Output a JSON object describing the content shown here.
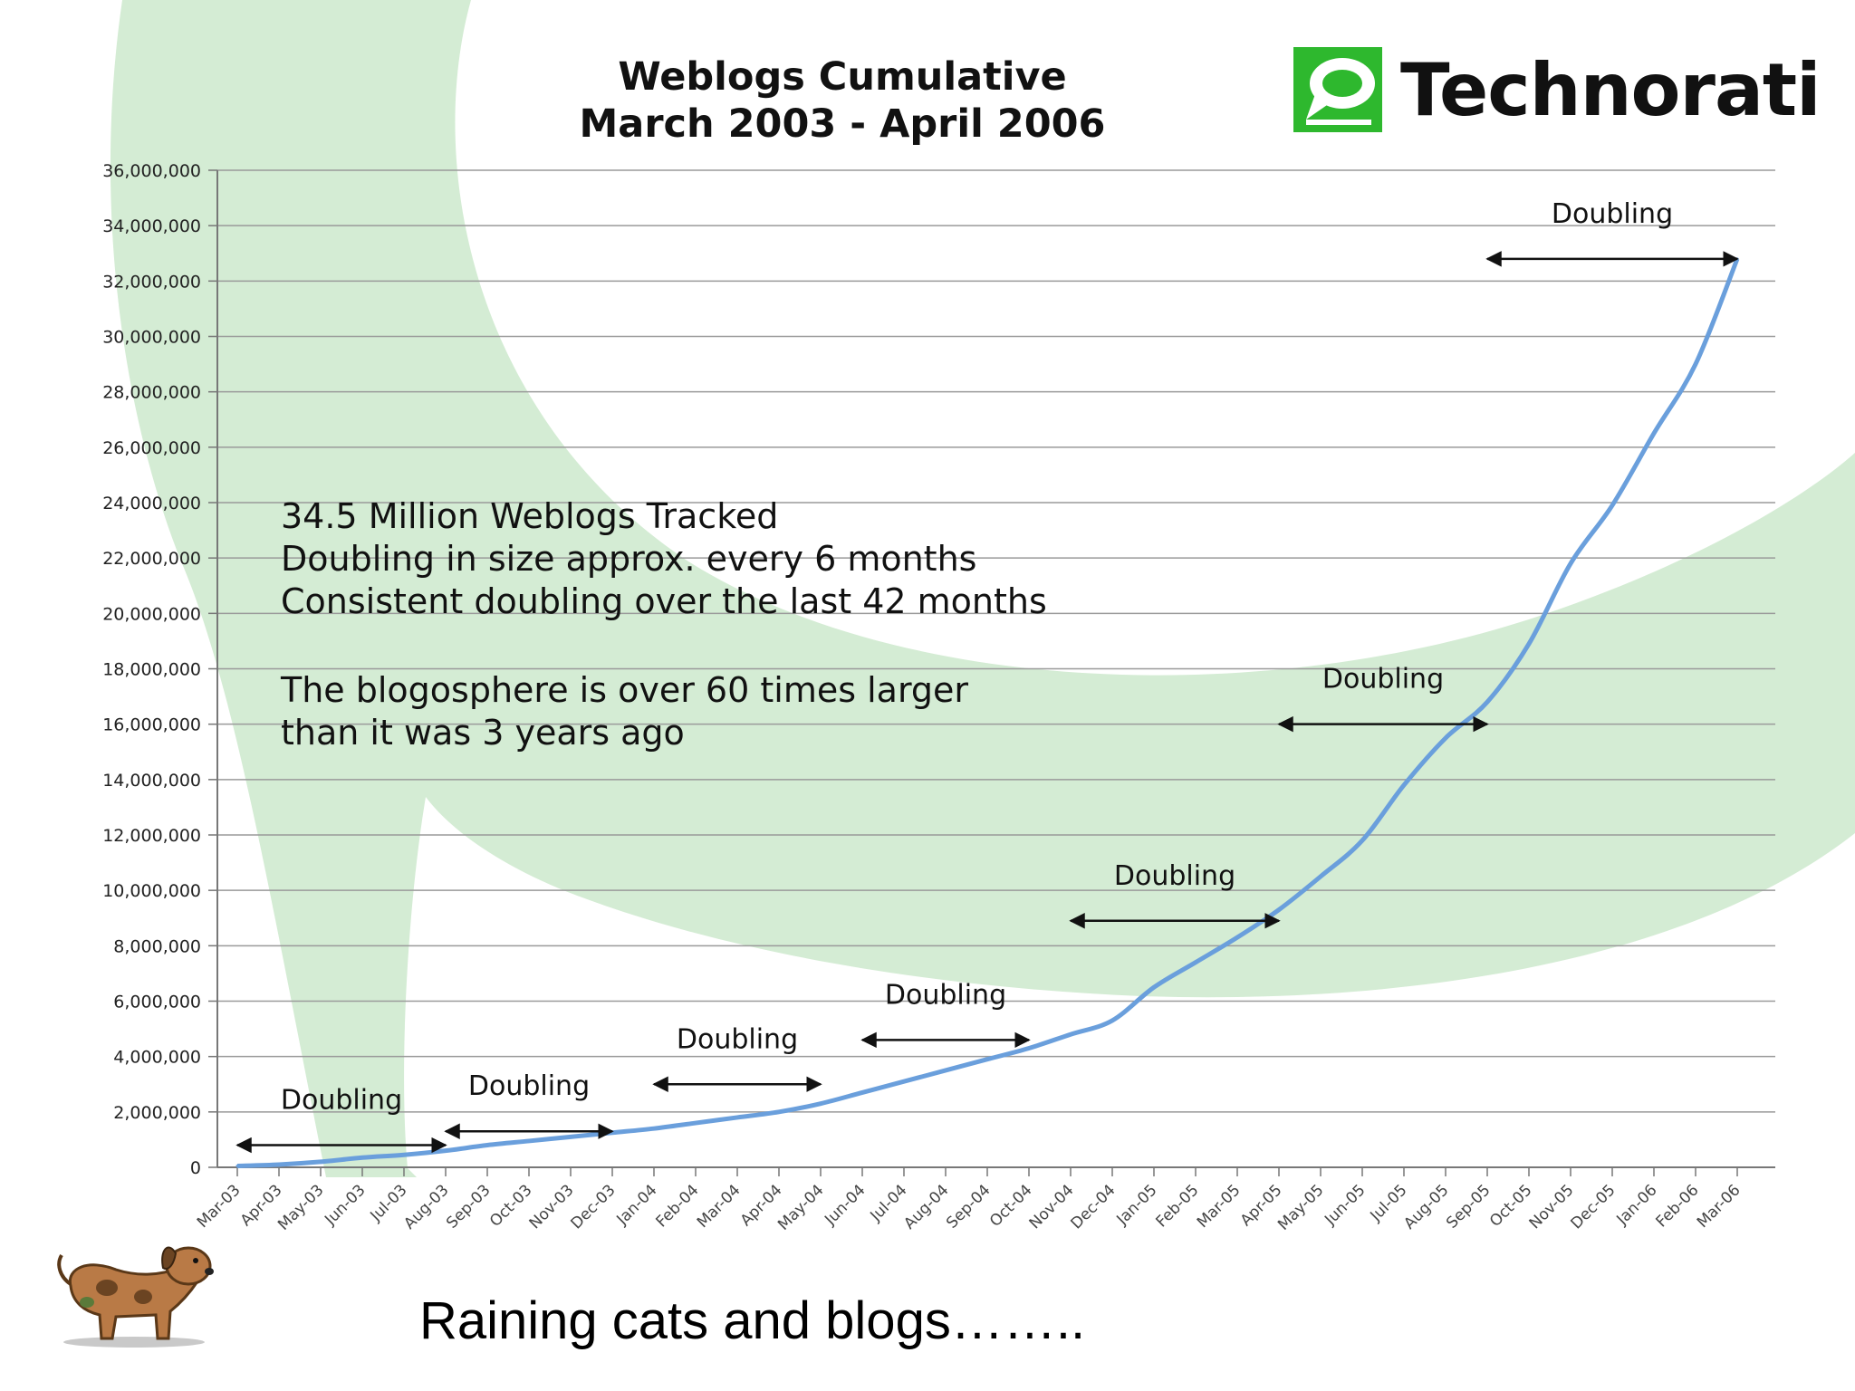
{
  "header": {
    "title_line1": "Weblogs Cumulative",
    "title_line2": "March 2003 - April 2006",
    "logo_text": "Technorati",
    "logo_icon": "technorati-speech-bubble-icon"
  },
  "notes": {
    "line1": "34.5 Million Weblogs Tracked",
    "line2": "Doubling in size approx. every 6 months",
    "line3": "Consistent doubling over the last 42 months",
    "line4": "The blogosphere is over 60 times larger",
    "line5": "than it was 3 years ago"
  },
  "caption": "Raining cats and blogs……..",
  "mascot_icon": "cartoon-dog-icon",
  "colors": {
    "line": "#6a9fdc",
    "background_swirl": "#d4ecd4",
    "logo_green": "#2eb82e"
  },
  "chart_data": {
    "type": "line",
    "title": "Weblogs Cumulative March 2003 - April 2006",
    "xlabel": "",
    "ylabel": "",
    "ylim": [
      0,
      36000000
    ],
    "yticks": [
      0,
      2000000,
      4000000,
      6000000,
      8000000,
      10000000,
      12000000,
      14000000,
      16000000,
      18000000,
      20000000,
      22000000,
      24000000,
      26000000,
      28000000,
      30000000,
      32000000,
      34000000,
      36000000
    ],
    "ytick_labels": [
      "0",
      "2,000,000",
      "4,000,000",
      "6,000,000",
      "8,000,000",
      "10,000,000",
      "12,000,000",
      "14,000,000",
      "16,000,000",
      "18,000,000",
      "20,000,000",
      "22,000,000",
      "24,000,000",
      "26,000,000",
      "28,000,000",
      "30,000,000",
      "32,000,000",
      "34,000,000",
      "36,000,000"
    ],
    "grid": true,
    "categories": [
      "Mar-03",
      "Apr-03",
      "May-03",
      "Jun-03",
      "Jul-03",
      "Aug-03",
      "Sep-03",
      "Oct-03",
      "Nov-03",
      "Dec-03",
      "Jan-04",
      "Feb-04",
      "Mar-04",
      "Apr-04",
      "May-04",
      "Jun-04",
      "Jul-04",
      "Aug-04",
      "Sep-04",
      "Oct-04",
      "Nov-04",
      "Dec-04",
      "Jan-05",
      "Feb-05",
      "Mar-05",
      "Apr-05",
      "May-05",
      "Jun-05",
      "Jul-05",
      "Aug-05",
      "Sep-05",
      "Oct-05",
      "Nov-05",
      "Dec-05",
      "Jan-06",
      "Feb-06",
      "Mar-06"
    ],
    "series": [
      {
        "values": [
          50000,
          100000,
          200000,
          350000,
          450000,
          600000,
          800000,
          950000,
          1100000,
          1250000,
          1400000,
          1600000,
          1800000,
          2000000,
          2300000,
          2700000,
          3100000,
          3500000,
          3900000,
          4300000,
          4800000,
          5300000,
          6500000,
          7400000,
          8300000,
          9300000,
          10500000,
          11800000,
          13800000,
          15500000,
          16800000,
          18900000,
          21800000,
          23900000,
          26500000,
          29000000,
          32800000
        ]
      }
    ],
    "annotations": [
      {
        "label": "Doubling",
        "from": "Mar-03",
        "to": "Aug-03",
        "y": 800000
      },
      {
        "label": "Doubling",
        "from": "Aug-03",
        "to": "Dec-03",
        "y": 1300000
      },
      {
        "label": "Doubling",
        "from": "Jan-04",
        "to": "May-04",
        "y": 3000000
      },
      {
        "label": "Doubling",
        "from": "Jun-04",
        "to": "Oct-04",
        "y": 4600000
      },
      {
        "label": "Doubling",
        "from": "Nov-04",
        "to": "Apr-05",
        "y": 8900000
      },
      {
        "label": "Doubling",
        "from": "Apr-05",
        "to": "Sep-05",
        "y": 16000000
      },
      {
        "label": "Doubling",
        "from": "Sep-05",
        "to": "Mar-06",
        "y": 32800000
      }
    ]
  }
}
